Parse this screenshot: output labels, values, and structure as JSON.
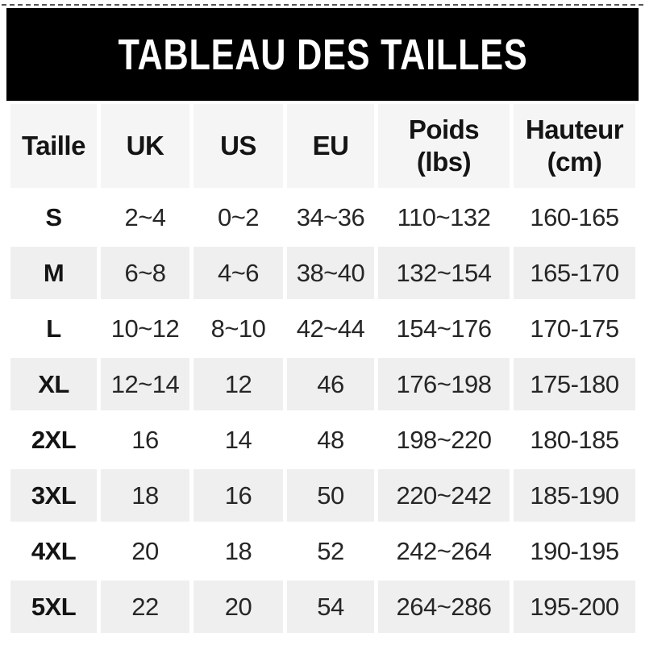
{
  "banner": {
    "title": "TABLEAU DES TAILLES"
  },
  "colors": {
    "banner_bg": "#000000",
    "banner_text": "#ffffff",
    "header_row_bg": "#f5f5f5",
    "row_alt_bg": "#efefef",
    "row_bg": "#ffffff",
    "text_dark": "#141414",
    "text_data": "#262626",
    "dash_color": "#555555"
  },
  "chart_data": {
    "type": "table",
    "title": "TABLEAU DES TAILLES",
    "columns": [
      {
        "label": "Taille"
      },
      {
        "label": "UK"
      },
      {
        "label": "US"
      },
      {
        "label": "EU"
      },
      {
        "label": "Poids",
        "sub": "(lbs)"
      },
      {
        "label": "Hauteur",
        "sub": "(cm)"
      }
    ],
    "rows": [
      {
        "size": "S",
        "uk": "2~4",
        "us": "0~2",
        "eu": "34~36",
        "poids": "110~132",
        "hauteur": "160-165"
      },
      {
        "size": "M",
        "uk": "6~8",
        "us": "4~6",
        "eu": "38~40",
        "poids": "132~154",
        "hauteur": "165-170"
      },
      {
        "size": "L",
        "uk": "10~12",
        "us": "8~10",
        "eu": "42~44",
        "poids": "154~176",
        "hauteur": "170-175"
      },
      {
        "size": "XL",
        "uk": "12~14",
        "us": "12",
        "eu": "46",
        "poids": "176~198",
        "hauteur": "175-180"
      },
      {
        "size": "2XL",
        "uk": "16",
        "us": "14",
        "eu": "48",
        "poids": "198~220",
        "hauteur": "180-185"
      },
      {
        "size": "3XL",
        "uk": "18",
        "us": "16",
        "eu": "50",
        "poids": "220~242",
        "hauteur": "185-190"
      },
      {
        "size": "4XL",
        "uk": "20",
        "us": "18",
        "eu": "52",
        "poids": "242~264",
        "hauteur": "190-195"
      },
      {
        "size": "5XL",
        "uk": "22",
        "us": "20",
        "eu": "54",
        "poids": "264~286",
        "hauteur": "195-200"
      }
    ]
  }
}
